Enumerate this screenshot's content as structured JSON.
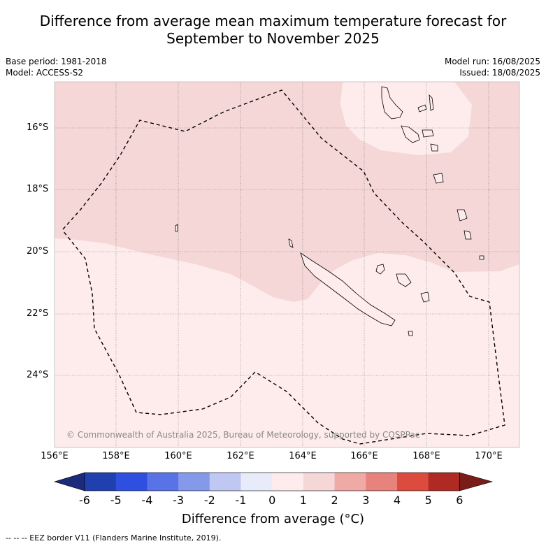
{
  "title_line1": "Difference from average mean maximum temperature forecast for",
  "title_line2": "September to November 2025",
  "base_period": "Base period: 1981-2018",
  "model": "Model: ACCESS-S2",
  "model_run": "Model run: 16/08/2025",
  "issued": "Issued: 18/08/2025",
  "lat_labels": [
    "16°S",
    "18°S",
    "20°S",
    "22°S",
    "24°S"
  ],
  "lon_labels": [
    "156°E",
    "158°E",
    "160°E",
    "162°E",
    "164°E",
    "166°E",
    "168°E",
    "170°E"
  ],
  "copyright": "© Commonwealth of Australia 2025, Bureau of Meteorology, supported by COSPPac",
  "colorbar": {
    "title": "Difference from average (°C)",
    "ticks": [
      "-6",
      "-5",
      "-4",
      "-3",
      "-2",
      "-1",
      "0",
      "1",
      "2",
      "3",
      "4",
      "5",
      "6"
    ],
    "colors": [
      "#1b2a7a",
      "#2140b0",
      "#2f4fe0",
      "#5873e6",
      "#8599ea",
      "#bfc8f3",
      "#e8ecfa",
      "#fdeceb",
      "#f5d7d7",
      "#efaaa6",
      "#e7837c",
      "#dc4b3e",
      "#ae2a23",
      "#7a1d19"
    ]
  },
  "footnote": "--  --  -- EEZ border V11 (Flanders Marine Institute, 2019).",
  "regions": {
    "anomaly_0_1": "#fdeceb",
    "anomaly_1_2": "#f5d7d7"
  }
}
